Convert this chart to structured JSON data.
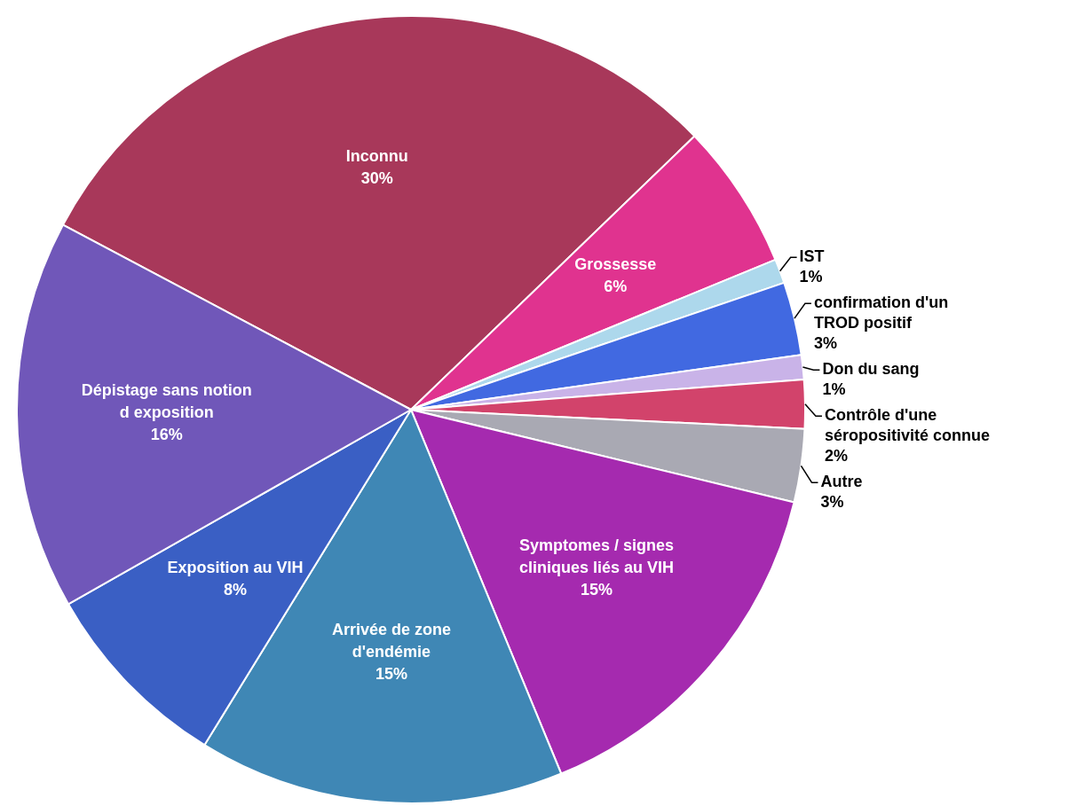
{
  "chart_data": {
    "type": "pie",
    "categories": [
      "Inconnu",
      "Grossesse",
      "IST",
      "confirmation d'un TROD positif",
      "Don du sang",
      "Contrôle d'une séropositivité connue",
      "Autre",
      "Symptomes / signes cliniques liés au VIH",
      "Arrivée de zone d'endémie",
      "Exposition au VIH",
      "Dépistage sans notion d exposition"
    ],
    "values": [
      30,
      6,
      1,
      3,
      1,
      2,
      3,
      15,
      15,
      8,
      16
    ],
    "value_labels": [
      "30%",
      "6%",
      "1%",
      "3%",
      "1%",
      "2%",
      "3%",
      "15%",
      "15%",
      "8%",
      "16%"
    ],
    "colors": [
      "#a8385a",
      "#e0338f",
      "#add8ec",
      "#4169e1",
      "#c9b3e8",
      "#d2436b",
      "#a9a9b3",
      "#a52aaf",
      "#3f87b5",
      "#3a5fc4",
      "#7057b9"
    ],
    "legend": false
  }
}
